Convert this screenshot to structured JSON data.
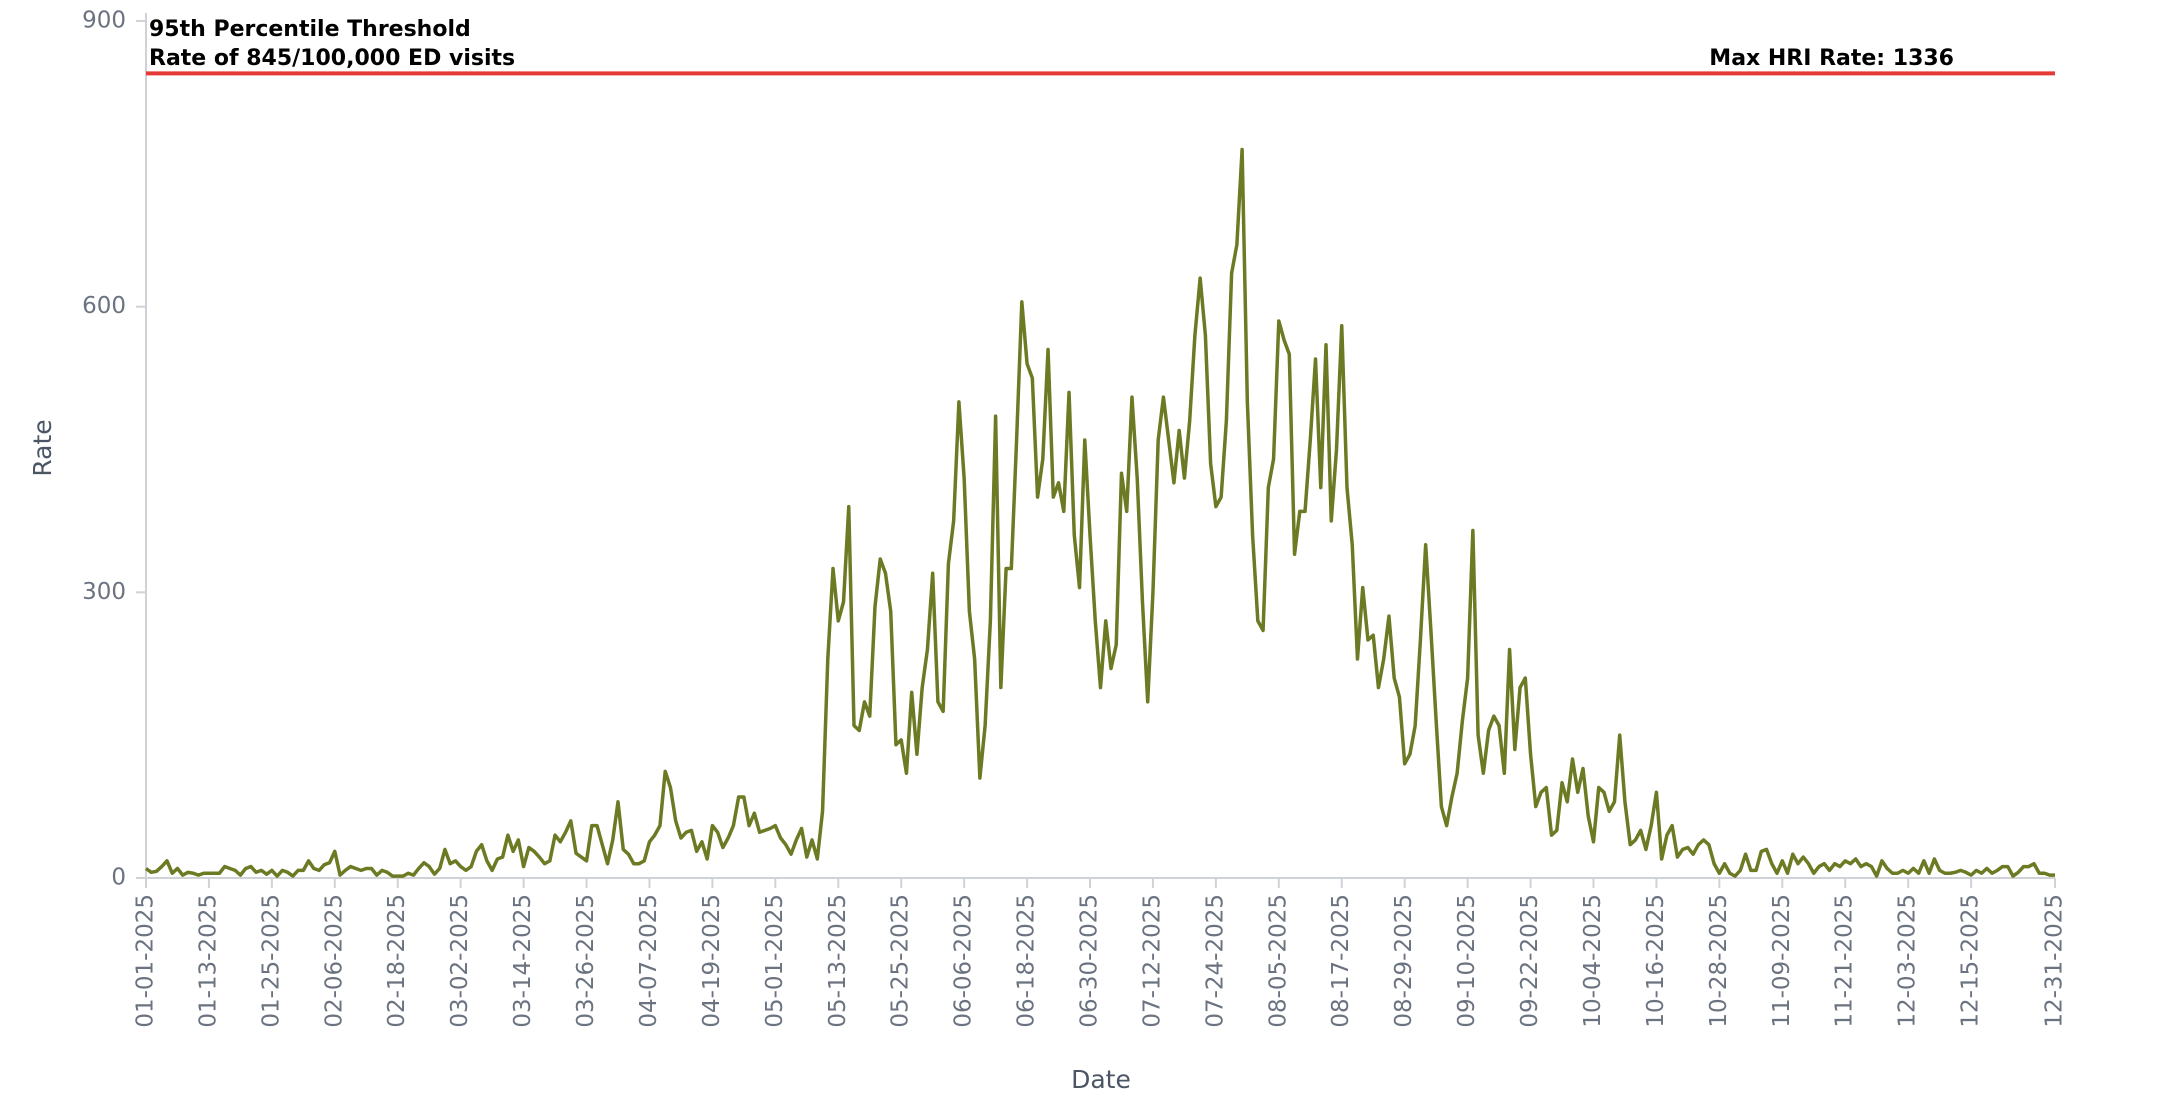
{
  "chart_data": {
    "type": "line",
    "x_label": "Date",
    "y_label": "Rate",
    "annotations": [
      "95th Percentile Threshold",
      "Rate of 845/100,000 ED visits",
      "Max HRI Rate: 1336"
    ],
    "threshold": {
      "value": 845,
      "color": "#e53935"
    },
    "color": "#6b7a23",
    "ylim": [
      0,
      900
    ],
    "yticks": [
      0,
      300,
      600,
      900
    ],
    "xlim": [
      "01-01-2025",
      "12-31-2025"
    ],
    "xticks": [
      "01-01-2025",
      "01-13-2025",
      "01-25-2025",
      "02-06-2025",
      "02-18-2025",
      "03-02-2025",
      "03-14-2025",
      "03-26-2025",
      "04-07-2025",
      "04-19-2025",
      "05-01-2025",
      "05-13-2025",
      "05-25-2025",
      "06-06-2025",
      "06-18-2025",
      "06-30-2025",
      "07-12-2025",
      "07-24-2025",
      "08-05-2025",
      "08-17-2025",
      "08-29-2025",
      "09-10-2025",
      "09-22-2025",
      "10-04-2025",
      "10-16-2025",
      "10-28-2025",
      "11-09-2025",
      "11-21-2025",
      "12-03-2025",
      "12-15-2025",
      "12-31-2025"
    ],
    "x": [
      "01-01-2025",
      "01-02-2025",
      "01-03-2025",
      "01-04-2025",
      "01-05-2025",
      "01-06-2025",
      "01-07-2025",
      "01-08-2025",
      "01-09-2025",
      "01-10-2025",
      "01-11-2025",
      "01-12-2025",
      "01-13-2025",
      "01-14-2025",
      "01-15-2025",
      "01-16-2025",
      "01-17-2025",
      "01-18-2025",
      "01-19-2025",
      "01-20-2025",
      "01-21-2025",
      "01-22-2025",
      "01-23-2025",
      "01-24-2025",
      "01-25-2025",
      "01-26-2025",
      "01-27-2025",
      "01-28-2025",
      "01-29-2025",
      "01-30-2025",
      "01-31-2025",
      "02-01-2025",
      "02-02-2025",
      "02-03-2025",
      "02-04-2025",
      "02-05-2025",
      "02-06-2025",
      "02-07-2025",
      "02-08-2025",
      "02-09-2025",
      "02-10-2025",
      "02-11-2025",
      "02-12-2025",
      "02-13-2025",
      "02-14-2025",
      "02-15-2025",
      "02-16-2025",
      "02-17-2025",
      "02-18-2025",
      "02-19-2025",
      "02-20-2025",
      "02-21-2025",
      "02-22-2025",
      "02-23-2025",
      "02-24-2025",
      "02-25-2025",
      "02-26-2025",
      "02-27-2025",
      "02-28-2025",
      "03-01-2025",
      "03-02-2025",
      "03-03-2025",
      "03-04-2025",
      "03-05-2025",
      "03-06-2025",
      "03-07-2025",
      "03-08-2025",
      "03-09-2025",
      "03-10-2025",
      "03-11-2025",
      "03-12-2025",
      "03-13-2025",
      "03-14-2025",
      "03-15-2025",
      "03-16-2025",
      "03-17-2025",
      "03-18-2025",
      "03-19-2025",
      "03-20-2025",
      "03-21-2025",
      "03-22-2025",
      "03-23-2025",
      "03-24-2025",
      "03-25-2025",
      "03-26-2025",
      "03-27-2025",
      "03-28-2025",
      "03-29-2025",
      "03-30-2025",
      "03-31-2025",
      "04-01-2025",
      "04-02-2025",
      "04-03-2025",
      "04-04-2025",
      "04-05-2025",
      "04-06-2025",
      "04-07-2025",
      "04-08-2025",
      "04-09-2025",
      "04-10-2025",
      "04-11-2025",
      "04-12-2025",
      "04-13-2025",
      "04-14-2025",
      "04-15-2025",
      "04-16-2025",
      "04-17-2025",
      "04-18-2025",
      "04-19-2025",
      "04-20-2025",
      "04-21-2025",
      "04-22-2025",
      "04-23-2025",
      "04-24-2025",
      "04-25-2025",
      "04-26-2025",
      "04-27-2025",
      "04-28-2025",
      "04-29-2025",
      "04-30-2025",
      "05-01-2025",
      "05-02-2025",
      "05-03-2025",
      "05-04-2025",
      "05-05-2025",
      "05-06-2025",
      "05-07-2025",
      "05-08-2025",
      "05-09-2025",
      "05-10-2025",
      "05-11-2025",
      "05-12-2025",
      "05-13-2025",
      "05-14-2025",
      "05-15-2025",
      "05-16-2025",
      "05-17-2025",
      "05-18-2025",
      "05-19-2025",
      "05-20-2025",
      "05-21-2025",
      "05-22-2025",
      "05-23-2025",
      "05-24-2025",
      "05-25-2025",
      "05-26-2025",
      "05-27-2025",
      "05-28-2025",
      "05-29-2025",
      "05-30-2025",
      "05-31-2025",
      "06-01-2025",
      "06-02-2025",
      "06-03-2025",
      "06-04-2025",
      "06-05-2025",
      "06-06-2025",
      "06-07-2025",
      "06-08-2025",
      "06-09-2025",
      "06-10-2025",
      "06-11-2025",
      "06-12-2025",
      "06-13-2025",
      "06-14-2025",
      "06-15-2025",
      "06-16-2025",
      "06-17-2025",
      "06-18-2025",
      "06-19-2025",
      "06-20-2025",
      "06-21-2025",
      "06-22-2025",
      "06-23-2025",
      "06-24-2025",
      "06-25-2025",
      "06-26-2025",
      "06-27-2025",
      "06-28-2025",
      "06-29-2025",
      "06-30-2025",
      "07-01-2025",
      "07-02-2025",
      "07-03-2025",
      "07-04-2025",
      "07-05-2025",
      "07-06-2025",
      "07-07-2025",
      "07-08-2025",
      "07-09-2025",
      "07-10-2025",
      "07-11-2025",
      "07-12-2025",
      "07-13-2025",
      "07-14-2025",
      "07-15-2025",
      "07-16-2025",
      "07-17-2025",
      "07-18-2025",
      "07-19-2025",
      "07-20-2025",
      "07-21-2025",
      "07-22-2025",
      "07-23-2025",
      "07-24-2025",
      "07-25-2025",
      "07-26-2025",
      "07-27-2025",
      "07-28-2025",
      "07-29-2025",
      "07-30-2025",
      "07-31-2025",
      "08-01-2025",
      "08-02-2025",
      "08-03-2025",
      "08-04-2025",
      "08-05-2025",
      "08-06-2025",
      "08-07-2025",
      "08-08-2025",
      "08-09-2025",
      "08-10-2025",
      "08-11-2025",
      "08-12-2025",
      "08-13-2025",
      "08-14-2025",
      "08-15-2025",
      "08-16-2025",
      "08-17-2025",
      "08-18-2025",
      "08-19-2025",
      "08-20-2025",
      "08-21-2025",
      "08-22-2025",
      "08-23-2025",
      "08-24-2025",
      "08-25-2025",
      "08-26-2025",
      "08-27-2025",
      "08-28-2025",
      "08-29-2025",
      "08-30-2025",
      "08-31-2025",
      "09-01-2025",
      "09-02-2025",
      "09-03-2025",
      "09-04-2025",
      "09-05-2025",
      "09-06-2025",
      "09-07-2025",
      "09-08-2025",
      "09-09-2025",
      "09-10-2025",
      "09-11-2025",
      "09-12-2025",
      "09-13-2025",
      "09-14-2025",
      "09-15-2025",
      "09-16-2025",
      "09-17-2025",
      "09-18-2025",
      "09-19-2025",
      "09-20-2025",
      "09-21-2025",
      "09-22-2025",
      "09-23-2025",
      "09-24-2025",
      "09-25-2025",
      "09-26-2025",
      "09-27-2025",
      "09-28-2025",
      "09-29-2025",
      "09-30-2025",
      "10-01-2025",
      "10-02-2025",
      "10-03-2025",
      "10-04-2025",
      "10-05-2025",
      "10-06-2025",
      "10-07-2025",
      "10-08-2025",
      "10-09-2025",
      "10-10-2025",
      "10-11-2025",
      "10-12-2025",
      "10-13-2025",
      "10-14-2025",
      "10-15-2025",
      "10-16-2025",
      "10-17-2025",
      "10-18-2025",
      "10-19-2025",
      "10-20-2025",
      "10-21-2025",
      "10-22-2025",
      "10-23-2025",
      "10-24-2025",
      "10-25-2025",
      "10-26-2025",
      "10-27-2025",
      "10-28-2025",
      "10-29-2025",
      "10-30-2025",
      "10-31-2025",
      "11-01-2025",
      "11-02-2025",
      "11-03-2025",
      "11-04-2025",
      "11-05-2025",
      "11-06-2025",
      "11-07-2025",
      "11-08-2025",
      "11-09-2025",
      "11-10-2025",
      "11-11-2025",
      "11-12-2025",
      "11-13-2025",
      "11-14-2025",
      "11-15-2025",
      "11-16-2025",
      "11-17-2025",
      "11-18-2025",
      "11-19-2025",
      "11-20-2025",
      "11-21-2025",
      "11-22-2025",
      "11-23-2025",
      "11-24-2025",
      "11-25-2025",
      "11-26-2025",
      "11-27-2025",
      "11-28-2025",
      "11-29-2025",
      "11-30-2025",
      "12-01-2025",
      "12-02-2025",
      "12-03-2025",
      "12-04-2025",
      "12-05-2025",
      "12-06-2025",
      "12-07-2025",
      "12-08-2025",
      "12-09-2025",
      "12-10-2025",
      "12-11-2025",
      "12-12-2025",
      "12-13-2025",
      "12-14-2025",
      "12-15-2025",
      "12-16-2025",
      "12-17-2025",
      "12-18-2025",
      "12-19-2025",
      "12-20-2025",
      "12-21-2025",
      "12-22-2025",
      "12-23-2025",
      "12-24-2025",
      "12-25-2025",
      "12-26-2025",
      "12-27-2025",
      "12-28-2025",
      "12-29-2025",
      "12-30-2025",
      "12-31-2025"
    ],
    "values": [
      10,
      6,
      7,
      12,
      18,
      5,
      10,
      3,
      6,
      5,
      3,
      5,
      5,
      5,
      5,
      12,
      10,
      8,
      3,
      10,
      12,
      6,
      8,
      4,
      8,
      2,
      8,
      6,
      2,
      8,
      8,
      18,
      10,
      8,
      14,
      16,
      28,
      3,
      8,
      12,
      10,
      8,
      10,
      10,
      3,
      8,
      6,
      2,
      2,
      2,
      5,
      3,
      10,
      16,
      12,
      4,
      10,
      30,
      15,
      18,
      12,
      8,
      12,
      28,
      35,
      18,
      8,
      20,
      22,
      45,
      28,
      40,
      12,
      32,
      28,
      22,
      15,
      18,
      45,
      38,
      48,
      60,
      26,
      22,
      18,
      55,
      55,
      35,
      15,
      40,
      80,
      30,
      25,
      15,
      15,
      18,
      38,
      45,
      55,
      112,
      95,
      60,
      42,
      48,
      50,
      28,
      38,
      20,
      55,
      48,
      32,
      42,
      55,
      85,
      85,
      55,
      68,
      48,
      50,
      52,
      55,
      42,
      35,
      25,
      40,
      52,
      22,
      40,
      20,
      70,
      230,
      325,
      270,
      290,
      390,
      160,
      155,
      185,
      170,
      285,
      335,
      320,
      280,
      140,
      145,
      110,
      195,
      130,
      200,
      240,
      320,
      185,
      175,
      330,
      375,
      500,
      420,
      280,
      230,
      105,
      160,
      270,
      485,
      200,
      325,
      325,
      460,
      605,
      540,
      525,
      400,
      440,
      555,
      400,
      415,
      385,
      510,
      360,
      305,
      460,
      360,
      270,
      200,
      270,
      220,
      245,
      425,
      385,
      505,
      420,
      290,
      185,
      300,
      460,
      505,
      460,
      415,
      470,
      420,
      480,
      570,
      630,
      570,
      435,
      390,
      400,
      480,
      635,
      665,
      765,
      500,
      360,
      270,
      260,
      410,
      440,
      585,
      565,
      550,
      340,
      385,
      385,
      460,
      545,
      410,
      560,
      375,
      450,
      580,
      410,
      350,
      230,
      305,
      250,
      255,
      200,
      230,
      275,
      210,
      190,
      120,
      130,
      160,
      250,
      350,
      260,
      165,
      75,
      55,
      85,
      110,
      165,
      210,
      365,
      150,
      110,
      155,
      170,
      160,
      110,
      240,
      135,
      200,
      210,
      130,
      75,
      90,
      95,
      45,
      50,
      100,
      80,
      125,
      90,
      115,
      65,
      38,
      95,
      90,
      70,
      80,
      150,
      80,
      35,
      40,
      50,
      30,
      55,
      90,
      20,
      45,
      55,
      22,
      30,
      32,
      25,
      35,
      40,
      35,
      15,
      5,
      15,
      5,
      2,
      8,
      25,
      8,
      8,
      28,
      30,
      15,
      5,
      18,
      5,
      25,
      15,
      22,
      15,
      5,
      12,
      15,
      8,
      15,
      12,
      18,
      15,
      20,
      12,
      15,
      12,
      2,
      18,
      10,
      5,
      5,
      8,
      5,
      10,
      5,
      18,
      5,
      20,
      8,
      5,
      5,
      6,
      8,
      6,
      3,
      8,
      5,
      10,
      5,
      8,
      12,
      12,
      2,
      6,
      12,
      12,
      15,
      5,
      5,
      3,
      3
    ]
  }
}
